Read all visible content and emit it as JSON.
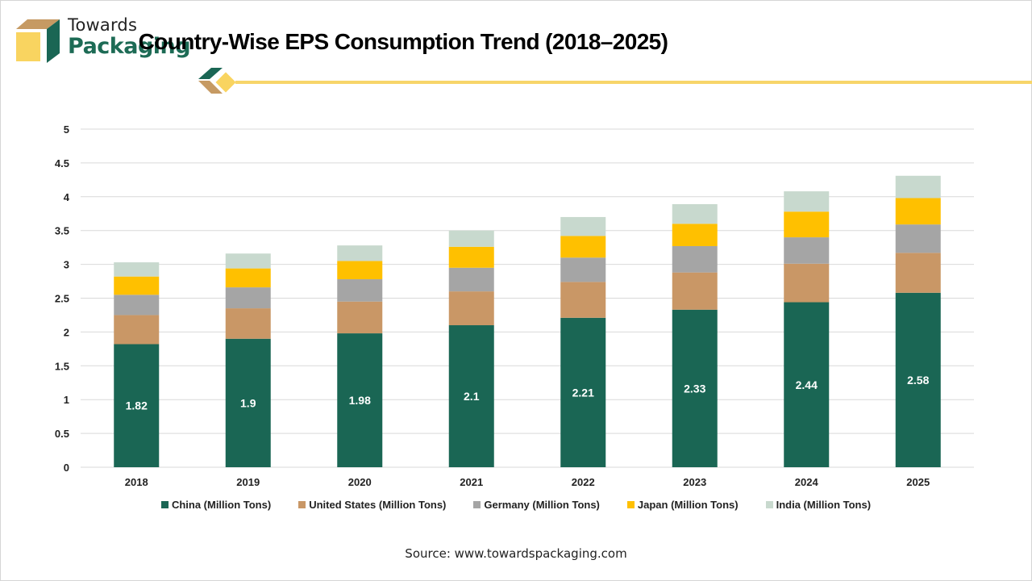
{
  "logo": {
    "line1": "Towards",
    "line2": "Packaging"
  },
  "source": "Source: www.towardspackaging.com",
  "chart_data": {
    "type": "bar",
    "stacked": true,
    "title": "Country-Wise EPS Consumption Trend (2018–2025)",
    "xlabel": "",
    "ylabel": "",
    "ylim": [
      0,
      5
    ],
    "yticks": [
      "0",
      "0.5",
      "1",
      "1.5",
      "2",
      "2.5",
      "3",
      "3.5",
      "4",
      "4.5",
      "5"
    ],
    "grid": true,
    "legend_position": "bottom",
    "categories": [
      "2018",
      "2019",
      "2020",
      "2021",
      "2022",
      "2023",
      "2024",
      "2025"
    ],
    "series": [
      {
        "name": "China (Million Tons)",
        "color": "#1a6654",
        "values": [
          1.82,
          1.9,
          1.98,
          2.1,
          2.21,
          2.33,
          2.44,
          2.58
        ],
        "labels": [
          "1.82",
          "1.9",
          "1.98",
          "2.1",
          "2.21",
          "2.33",
          "2.44",
          "2.58"
        ]
      },
      {
        "name": "United States (Million Tons)",
        "color": "#c99766",
        "values": [
          0.43,
          0.45,
          0.47,
          0.5,
          0.53,
          0.55,
          0.57,
          0.59
        ]
      },
      {
        "name": "Germany (Million Tons)",
        "color": "#a5a5a5",
        "values": [
          0.3,
          0.31,
          0.33,
          0.35,
          0.36,
          0.39,
          0.39,
          0.42
        ]
      },
      {
        "name": "Japan (Million Tons)",
        "color": "#ffc000",
        "values": [
          0.27,
          0.28,
          0.27,
          0.31,
          0.32,
          0.33,
          0.38,
          0.39
        ]
      },
      {
        "name": "India (Million Tons)",
        "color": "#c8d9ce",
        "values": [
          0.21,
          0.22,
          0.23,
          0.24,
          0.28,
          0.29,
          0.3,
          0.33
        ]
      }
    ]
  }
}
